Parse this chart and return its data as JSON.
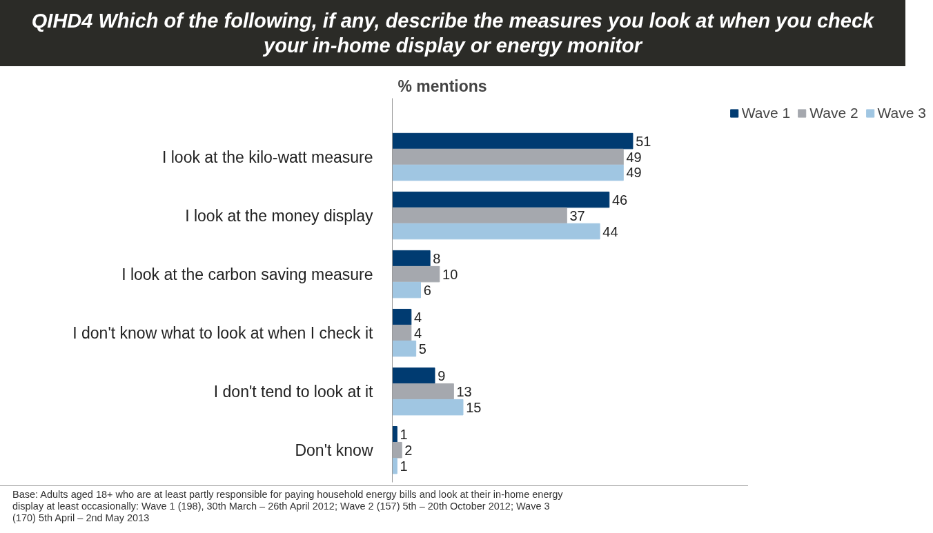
{
  "chart_data": {
    "type": "bar",
    "orientation": "horizontal",
    "title": "QIHD4 Which of the following, if any, describe the measures you look at when you check your in-home display or energy monitor",
    "subtitle": "% mentions",
    "categories": [
      "I look at the kilo-watt measure",
      "I look at the money display",
      "I look at the carbon saving measure",
      "I don't know what to look at when I check it",
      "I don't tend to look at it",
      "Don't know"
    ],
    "series": [
      {
        "name": "Wave 1",
        "color": "#003b71",
        "values": [
          51,
          46,
          8,
          4,
          9,
          1
        ]
      },
      {
        "name": "Wave 2",
        "color": "#a5a8ae",
        "values": [
          49,
          37,
          10,
          4,
          13,
          2
        ]
      },
      {
        "name": "Wave 3",
        "color": "#a0c6e2",
        "values": [
          49,
          44,
          6,
          5,
          15,
          1
        ]
      }
    ],
    "data_labels": true,
    "legend": "top right",
    "grid": false,
    "annotations": [
      "Base:  Adults aged 18+ who are at least partly responsible for paying household energy bills and look at their in-home energy display at least occasionally: Wave 1 (198), 30th March – 26th April 2012; Wave 2 (157) 5th – 20th October 2012; Wave 3 (170) 5th April – 2nd May 2013"
    ]
  }
}
